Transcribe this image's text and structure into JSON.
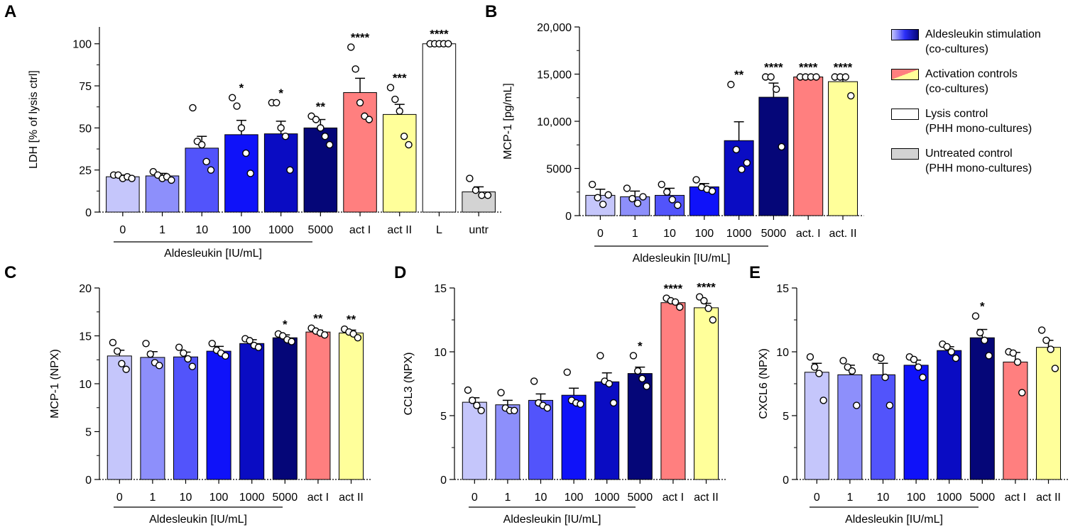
{
  "colors": {
    "c0": "#c5c6fb",
    "c1": "#8d8ffb",
    "c10": "#5254fb",
    "c100": "#0f12f9",
    "c1000": "#0a0cc3",
    "c5000": "#050678",
    "actI": "#ff7f7f",
    "actII": "#ffff9a",
    "lysis": "#ffffff",
    "untr": "#d3d3d3"
  },
  "legend": [
    {
      "line1": "Aldesleukin stimulation",
      "line2": "(co-cultures)",
      "swatch": "gradient"
    },
    {
      "line1": "Activation controls",
      "line2": "(co-cultures)",
      "swatch": "activation"
    },
    {
      "line1": "Lysis control",
      "line2": "(PHH mono-cultures)",
      "swatch": "lysis"
    },
    {
      "line1": "Untreated control",
      "line2": "(PHH mono-cultures)",
      "swatch": "untr"
    }
  ],
  "chart_data": [
    {
      "panel": "A",
      "type": "bar",
      "title": "",
      "ylabel": "LDH [% of lysis ctrl]",
      "xlabel": "Aldesleukin [IU/mL]",
      "ylim": [
        0,
        110
      ],
      "yticks": [
        0,
        25,
        50,
        75,
        100
      ],
      "ytick_labels": [
        "0",
        "25",
        "50",
        "75",
        "100"
      ],
      "categories": [
        "0",
        "1",
        "10",
        "100",
        "1000",
        "5000",
        "act I",
        "act II",
        "L",
        "untr"
      ],
      "values": [
        21,
        21.5,
        38,
        46,
        46.5,
        50,
        71,
        58,
        100,
        12
      ],
      "errors": [
        1,
        1.5,
        7,
        8.5,
        7.5,
        5,
        8.5,
        6,
        0,
        3
      ],
      "points": [
        [
          22,
          22,
          20,
          21,
          20
        ],
        [
          24,
          22,
          20,
          21,
          19
        ],
        [
          62,
          42,
          40,
          30,
          25
        ],
        [
          68,
          63,
          50,
          35,
          23
        ],
        [
          65,
          65,
          50,
          45,
          25
        ],
        [
          57,
          55,
          50,
          45,
          40
        ],
        [
          98,
          85,
          65,
          57,
          55
        ],
        [
          74,
          67,
          60,
          45,
          40
        ],
        [
          100,
          100,
          100,
          100,
          100
        ],
        [
          20,
          13,
          10,
          10
        ]
      ],
      "significance": [
        "",
        "",
        "",
        "*",
        "*",
        "**",
        "****",
        "***",
        "****",
        ""
      ],
      "colors": [
        "c0",
        "c1",
        "c10",
        "c100",
        "c1000",
        "c5000",
        "actI",
        "actII",
        "lysis",
        "untr"
      ],
      "group_span": [
        0,
        5
      ]
    },
    {
      "panel": "B",
      "type": "bar",
      "title": "",
      "ylabel": "MCP-1 [pg/mL]",
      "xlabel": "Aldesleukin [IU/mL]",
      "ylim": [
        0,
        20000
      ],
      "yticks": [
        0,
        5000,
        10000,
        15000,
        20000
      ],
      "ytick_labels": [
        "0",
        "5000",
        "10,000",
        "15,000",
        "20,000"
      ],
      "categories": [
        "0",
        "1",
        "10",
        "100",
        "1000",
        "5000",
        "act. I",
        "act. II"
      ],
      "values": [
        2150,
        2000,
        2150,
        3050,
        7950,
        12550,
        14700,
        14200
      ],
      "errors": [
        650,
        600,
        750,
        350,
        2000,
        1500,
        0,
        450
      ],
      "points": [
        [
          3300,
          1900,
          1200,
          2200
        ],
        [
          2900,
          1800,
          1300,
          2000
        ],
        [
          3300,
          2500,
          1700,
          1100
        ],
        [
          3800,
          3000,
          2800,
          2600
        ],
        [
          13900,
          7000,
          4900,
          5600
        ],
        [
          14700,
          14700,
          13400,
          7300
        ],
        [
          14700,
          14700,
          14700,
          14700
        ],
        [
          14700,
          14700,
          14700,
          12700
        ]
      ],
      "significance": [
        "",
        "",
        "",
        "",
        "**",
        "****",
        "****",
        "****"
      ],
      "colors": [
        "c0",
        "c1",
        "c10",
        "c100",
        "c1000",
        "c5000",
        "actI",
        "actII"
      ],
      "group_span": [
        0,
        5
      ]
    },
    {
      "panel": "C",
      "type": "bar",
      "title": "",
      "ylabel": "MCP-1 (NPX)",
      "xlabel": "Aldesleukin [IU/mL]",
      "ylim": [
        0,
        20
      ],
      "yticks": [
        0,
        5,
        10,
        15,
        20
      ],
      "ytick_labels": [
        "0",
        "5",
        "10",
        "15",
        "20"
      ],
      "categories": [
        "0",
        "1",
        "10",
        "100",
        "1000",
        "5000",
        "act I",
        "act II"
      ],
      "values": [
        12.9,
        12.75,
        12.8,
        13.4,
        14.2,
        14.8,
        15.4,
        15.3
      ],
      "errors": [
        0.6,
        0.6,
        0.5,
        0.5,
        0.4,
        0.3,
        0.2,
        0.3
      ],
      "points": [
        [
          14.3,
          13.4,
          12.1,
          11.5
        ],
        [
          14.2,
          13.1,
          12.2,
          11.9
        ],
        [
          13.8,
          13.2,
          12.6,
          11.8
        ],
        [
          14.2,
          13.5,
          13.2,
          12.9
        ],
        [
          14.7,
          14.5,
          14.0,
          13.8
        ],
        [
          15.2,
          15.0,
          14.6,
          14.4
        ],
        [
          15.8,
          15.5,
          15.3,
          15.1
        ],
        [
          15.7,
          15.4,
          15.2,
          14.8
        ]
      ],
      "significance": [
        "",
        "",
        "",
        "",
        "",
        "*",
        "**",
        "**"
      ],
      "colors": [
        "c0",
        "c1",
        "c10",
        "c100",
        "c1000",
        "c5000",
        "actI",
        "actII"
      ],
      "group_span": [
        0,
        5
      ]
    },
    {
      "panel": "D",
      "type": "bar",
      "title": "",
      "ylabel": "CCL3 (NPX)",
      "xlabel": "Aldesleukin [IU/mL]",
      "ylim": [
        0,
        15
      ],
      "yticks": [
        0,
        5,
        10,
        15
      ],
      "ytick_labels": [
        "0",
        "5",
        "10",
        "15"
      ],
      "categories": [
        "0",
        "1",
        "10",
        "100",
        "1000",
        "5000",
        "act I",
        "act II"
      ],
      "values": [
        6.05,
        5.85,
        6.2,
        6.6,
        7.65,
        8.3,
        13.85,
        13.45
      ],
      "errors": [
        0.35,
        0.35,
        0.5,
        0.55,
        0.7,
        0.5,
        0.15,
        0.35
      ],
      "points": [
        [
          7.0,
          6.2,
          5.8,
          5.4
        ],
        [
          6.8,
          5.6,
          5.4,
          5.4
        ],
        [
          7.7,
          6.0,
          5.8,
          5.6
        ],
        [
          8.4,
          6.2,
          6.0,
          5.9
        ],
        [
          9.7,
          7.7,
          7.5,
          6.0
        ],
        [
          9.7,
          8.5,
          7.9,
          7.3
        ],
        [
          14.2,
          14.0,
          13.9,
          13.5
        ],
        [
          14.3,
          14.0,
          13.4,
          12.5
        ]
      ],
      "significance": [
        "",
        "",
        "",
        "",
        "",
        "*",
        "****",
        "****"
      ],
      "colors": [
        "c0",
        "c1",
        "c10",
        "c100",
        "c1000",
        "c5000",
        "actI",
        "actII"
      ],
      "group_span": [
        0,
        5
      ]
    },
    {
      "panel": "E",
      "type": "bar",
      "title": "",
      "ylabel": "CXCL6 (NPX)",
      "xlabel": "Aldesleukin [IU/mL]",
      "ylim": [
        0,
        15
      ],
      "yticks": [
        0,
        5,
        10,
        15
      ],
      "ytick_labels": [
        "0",
        "5",
        "10",
        "15"
      ],
      "categories": [
        "0",
        "1",
        "10",
        "100",
        "1000",
        "5000",
        "act I",
        "act II"
      ],
      "values": [
        8.4,
        8.2,
        8.2,
        8.95,
        10.1,
        11.1,
        9.2,
        10.35
      ],
      "errors": [
        0.7,
        0.75,
        0.9,
        0.4,
        0.3,
        0.65,
        0.75,
        0.55
      ],
      "points": [
        [
          9.6,
          8.8,
          8.3,
          6.2
        ],
        [
          9.3,
          8.8,
          8.5,
          5.8
        ],
        [
          9.6,
          9.5,
          8.0,
          5.8
        ],
        [
          9.6,
          9.4,
          8.8,
          8.0
        ],
        [
          10.6,
          10.4,
          10.0,
          9.5
        ],
        [
          12.8,
          11.5,
          10.9,
          9.7
        ],
        [
          10.0,
          9.9,
          9.2,
          6.8
        ],
        [
          11.7,
          10.9,
          10.2,
          8.7
        ]
      ],
      "significance": [
        "",
        "",
        "",
        "",
        "",
        "*",
        "",
        ""
      ],
      "colors": [
        "c0",
        "c1",
        "c10",
        "c100",
        "c1000",
        "c5000",
        "actI",
        "actII"
      ],
      "group_span": [
        0,
        5
      ]
    }
  ]
}
